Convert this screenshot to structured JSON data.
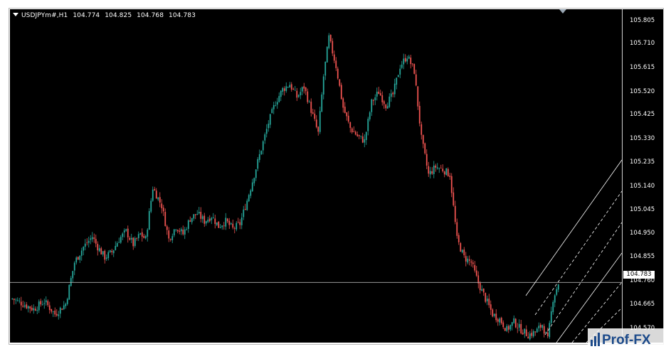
{
  "chart_header": {
    "symbol": "USDJPYm#,H1",
    "open": "104.774",
    "high": "104.825",
    "low": "104.768",
    "close": "104.783"
  },
  "price_axis": {
    "labels": [
      "105.805",
      "105.710",
      "105.615",
      "105.520",
      "105.425",
      "105.330",
      "105.235",
      "105.140",
      "105.045",
      "104.950",
      "104.855",
      "104.760",
      "104.665",
      "104.570"
    ],
    "current_price": "104.783"
  },
  "watermark": {
    "text": "Prof-FX"
  },
  "colors": {
    "background": "#000000",
    "bull_candle": "#26a69a",
    "bear_candle": "#ef5350",
    "channel": "#ffffff",
    "axis_text": "#ffffff"
  },
  "chart_data": {
    "type": "candlestick",
    "title": "USDJPYm#,H1",
    "ylim": [
      104.55,
      105.84
    ],
    "grid": false,
    "current_price_line": 104.783,
    "candles": []
  }
}
